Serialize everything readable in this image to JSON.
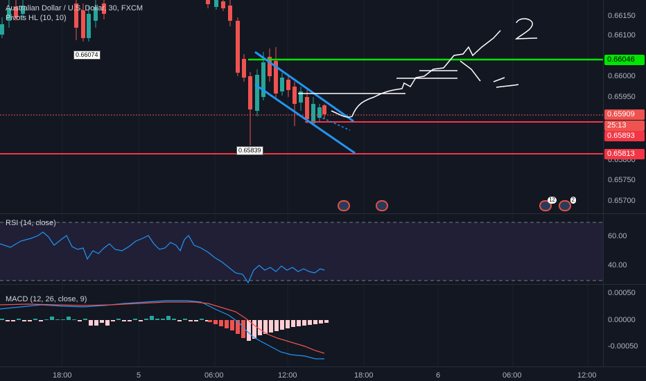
{
  "header": {
    "title": "Australian Dollar / U.S. Dollar, 30, FXCM",
    "indicator": "Pivots HL (10, 10)"
  },
  "price_axis": {
    "ticks": [
      "0.66150",
      "0.66100",
      "0.66050",
      "0.66000",
      "0.65950",
      "0.65900",
      "0.65850",
      "0.65800",
      "0.65750",
      "0.65700"
    ],
    "tags": {
      "green": "0.66046",
      "last": "0.65909",
      "countdown": "25:13",
      "red1": "0.65893",
      "red2": "0.65813"
    }
  },
  "pivots": {
    "high": "0.66074",
    "low": "0.65839"
  },
  "rsi": {
    "legend": "RSI (14, close)",
    "ticks": [
      "60.00",
      "40.00"
    ]
  },
  "macd": {
    "legend": "MACD (12, 26, close, 9)",
    "ticks": [
      "0.00050",
      "0.00000",
      "-0.00050"
    ]
  },
  "time_axis": {
    "labels": [
      "18:00",
      "5",
      "06:00",
      "12:00",
      "18:00",
      "6",
      "06:00",
      "12:00"
    ]
  },
  "events": [
    {
      "badge": ""
    },
    {
      "badge": ""
    },
    {
      "badge": "12"
    },
    {
      "badge": "2"
    }
  ],
  "annotations": {
    "hand1": "1",
    "hand2": "2"
  },
  "colors": {
    "up": "#26a69a",
    "down": "#ef5350",
    "green_line": "#00e600",
    "red_line": "#f23645",
    "channel": "#2196f3"
  }
}
